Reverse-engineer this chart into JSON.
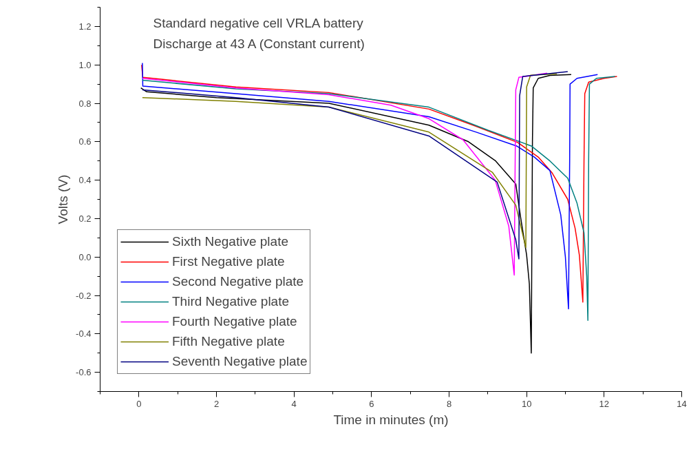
{
  "chart_data": {
    "type": "line",
    "title": "Standard negative cell VRLA battery",
    "subtitle": "Discharge at 43 A (Constant current)",
    "xlabel": "Time in minutes (m)",
    "ylabel": "Volts (V)",
    "xlim": [
      -1,
      14
    ],
    "xticks": [
      0,
      2,
      4,
      6,
      8,
      10,
      12,
      14
    ],
    "ylim": [
      -0.7,
      1.3
    ],
    "yticks": [
      {
        "value": -0.6,
        "label": "-0.6"
      },
      {
        "value": -0.4,
        "label": "-0.4"
      },
      {
        "value": -0.2,
        "label": "-0.2"
      },
      {
        "value": 0,
        "label": "0.0"
      },
      {
        "value": 0.2,
        "label": "0.2"
      },
      {
        "value": 0.4,
        "label": "0.4"
      },
      {
        "value": 0.6,
        "label": "0.6"
      },
      {
        "value": 0.8,
        "label": "0.8"
      },
      {
        "value": 1.0,
        "label": "1.0"
      },
      {
        "value": 1.2,
        "label": "1.2"
      }
    ],
    "grid": false,
    "legend": "bottom left",
    "marker": "none",
    "line_style": "solid",
    "series": [
      {
        "name": "Sixth Negative plate",
        "color": "#000000",
        "x": [
          0.05,
          0.2,
          2,
          4.9,
          7.48,
          8.5,
          9.2,
          9.72,
          9.85,
          10.0,
          10.07,
          10.12,
          10.15,
          10.17,
          10.3,
          10.6,
          11.15
        ],
        "values": [
          0.88,
          0.86,
          0.83,
          0.8,
          0.686,
          0.6,
          0.5,
          0.38,
          0.2,
          0.01,
          -0.14,
          -0.5,
          0.6,
          0.88,
          0.93,
          0.945,
          0.95
        ]
      },
      {
        "name": "First Negative plate",
        "color": "#ff0000",
        "x": [
          0.07,
          0.1,
          2.5,
          4.9,
          7.48,
          8.7,
          9.77,
          10.3,
          10.65,
          11.06,
          11.25,
          11.36,
          11.45,
          11.48,
          11.5,
          11.6,
          12,
          12.33
        ],
        "values": [
          1.0,
          0.935,
          0.885,
          0.856,
          0.77,
          0.68,
          0.596,
          0.52,
          0.44,
          0.3,
          0.15,
          0.01,
          -0.235,
          0.5,
          0.85,
          0.91,
          0.93,
          0.94
        ]
      },
      {
        "name": "Second Negative plate",
        "color": "#0000ff",
        "x": [
          0.09,
          0.1,
          2.5,
          4.9,
          7.48,
          8.7,
          9.74,
          10.2,
          10.6,
          10.88,
          11.0,
          11.08,
          11.11,
          11.12,
          11.3,
          11.83
        ],
        "values": [
          1.01,
          0.89,
          0.85,
          0.81,
          0.73,
          0.65,
          0.578,
          0.52,
          0.45,
          0.22,
          0.0,
          -0.27,
          0.5,
          0.9,
          0.93,
          0.95
        ]
      },
      {
        "name": "Third Negative plate",
        "color": "#008080",
        "x": [
          0.09,
          2.5,
          4.9,
          7.48,
          9,
          10.12,
          10.6,
          11.06,
          11.3,
          11.48,
          11.55,
          11.58,
          11.6,
          11.62,
          11.8,
          12.28
        ],
        "values": [
          0.92,
          0.875,
          0.85,
          0.78,
          0.66,
          0.578,
          0.5,
          0.41,
          0.28,
          0.126,
          -0.1,
          -0.33,
          0.5,
          0.9,
          0.93,
          0.94
        ]
      },
      {
        "name": "Fourth Negative plate",
        "color": "#ff00ff",
        "x": [
          0.09,
          2.5,
          4.9,
          6.5,
          7.48,
          8.36,
          9.19,
          9.54,
          9.68,
          9.72,
          9.8,
          10.53
        ],
        "values": [
          0.93,
          0.88,
          0.845,
          0.79,
          0.72,
          0.61,
          0.4,
          0.16,
          -0.094,
          0.87,
          0.935,
          0.957
        ]
      },
      {
        "name": "Fifth Negative plate",
        "color": "#808000",
        "x": [
          0.09,
          2.5,
          4.9,
          7.48,
          9.12,
          9.72,
          9.92,
          9.98,
          10.0,
          10.1,
          10.78
        ],
        "values": [
          0.83,
          0.81,
          0.78,
          0.65,
          0.44,
          0.27,
          0.1,
          0.05,
          0.885,
          0.946,
          0.953
        ]
      },
      {
        "name": "Seventh Negative plate",
        "color": "#000080",
        "x": [
          0.09,
          2.5,
          4.9,
          7.48,
          9.24,
          9.72,
          9.8,
          9.82,
          9.9,
          11.06
        ],
        "values": [
          0.87,
          0.83,
          0.78,
          0.63,
          0.39,
          0.09,
          -0.01,
          0.84,
          0.94,
          0.965
        ]
      }
    ]
  }
}
